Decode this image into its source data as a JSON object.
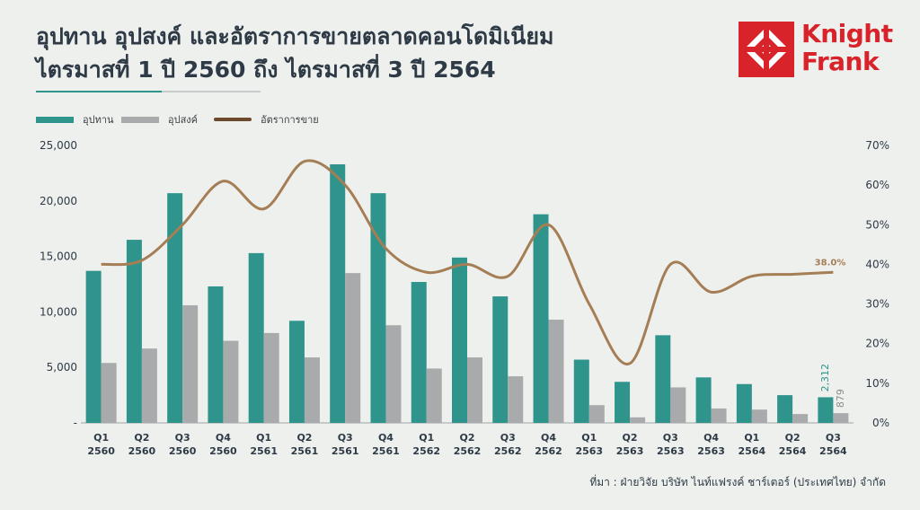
{
  "title_line1": "อุปทาน อุปสงค์ และอัตราการขายตลาดคอนโดมิเนียม",
  "title_line2": "ไตรมาสที่ 1 ปี 2560 ถึง ไตรมาสที่ 3 ปี 2564",
  "logo": {
    "line1": "Knight",
    "line2": "Frank",
    "color": "#d8232a"
  },
  "source": "ที่มา : ฝ่ายวิจัย บริษัท ไนท์แฟรงค์ ชาร์เตอร์ (ประเทศไทย) จำกัด",
  "colors": {
    "supply": "#2f948c",
    "demand": "#a9aaab",
    "rate": "#a57e55",
    "rate_legend": "#6e4a2c"
  },
  "chart_data": {
    "type": "bar",
    "categories": [
      [
        "Q1",
        "2560"
      ],
      [
        "Q2",
        "2560"
      ],
      [
        "Q3",
        "2560"
      ],
      [
        "Q4",
        "2560"
      ],
      [
        "Q1",
        "2561"
      ],
      [
        "Q2",
        "2561"
      ],
      [
        "Q3",
        "2561"
      ],
      [
        "Q4",
        "2561"
      ],
      [
        "Q1",
        "2562"
      ],
      [
        "Q2",
        "2562"
      ],
      [
        "Q3",
        "2562"
      ],
      [
        "Q4",
        "2562"
      ],
      [
        "Q1",
        "2563"
      ],
      [
        "Q2",
        "2563"
      ],
      [
        "Q3",
        "2563"
      ],
      [
        "Q4",
        "2563"
      ],
      [
        "Q1",
        "2564"
      ],
      [
        "Q2",
        "2564"
      ],
      [
        "Q3",
        "2564"
      ]
    ],
    "series": [
      {
        "name": "อุปทาน",
        "type": "bar",
        "axis": "left",
        "values": [
          13700,
          16500,
          20700,
          12300,
          15300,
          9200,
          23300,
          20700,
          12700,
          14900,
          11400,
          18800,
          5700,
          3700,
          7900,
          4100,
          3500,
          2500,
          2312
        ]
      },
      {
        "name": "อุปสงค์",
        "type": "bar",
        "axis": "left",
        "values": [
          5400,
          6700,
          10600,
          7400,
          8100,
          5900,
          13500,
          8800,
          4900,
          5900,
          4200,
          9300,
          1600,
          500,
          3200,
          1300,
          1200,
          800,
          879
        ]
      },
      {
        "name": "อัตราการขาย",
        "type": "line",
        "axis": "right",
        "values": [
          40,
          41,
          50,
          61,
          54,
          66,
          60,
          44,
          38,
          40,
          37,
          50,
          30,
          15,
          40,
          33,
          37,
          37.5,
          38
        ]
      }
    ],
    "y_left": {
      "min": 0,
      "max": 25000,
      "ticks": [
        "-",
        "5,000",
        "10,000",
        "15,000",
        "20,000",
        "25,000"
      ]
    },
    "y_right": {
      "min": 0,
      "max": 70,
      "ticks": [
        "0%",
        "10%",
        "20%",
        "30%",
        "40%",
        "50%",
        "60%",
        "70%"
      ]
    },
    "annotations": {
      "supply_last": "2,312",
      "demand_last": "879",
      "rate_last": "38.0%"
    },
    "legend_position": "top-left"
  }
}
